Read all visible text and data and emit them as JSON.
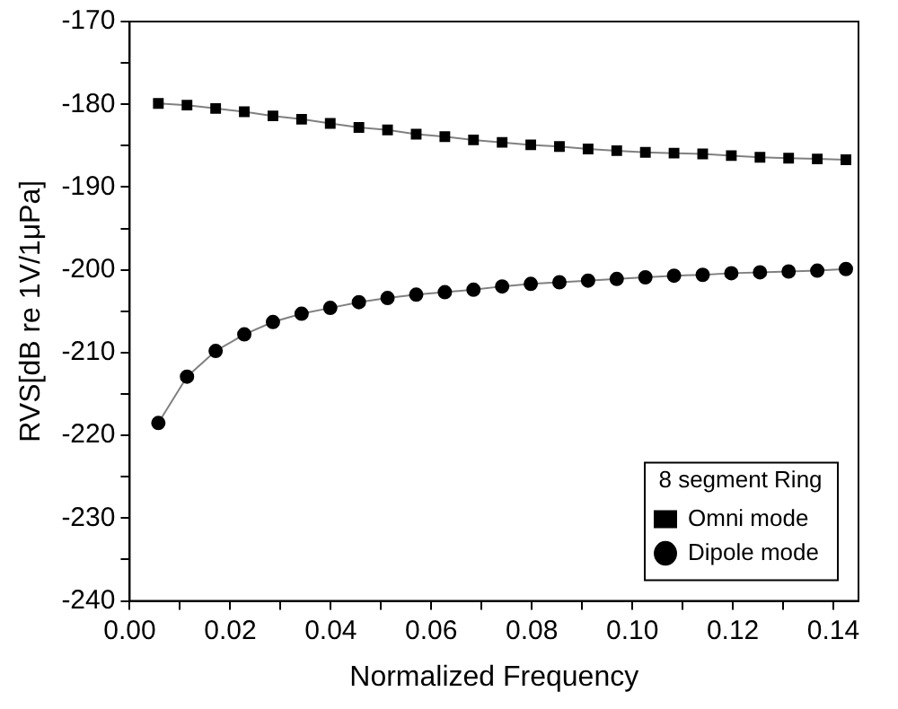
{
  "chart_data": {
    "type": "line",
    "xlabel": "Normalized Frequency",
    "ylabel": "RVS[dB re 1V/1μPa]",
    "legend_title": "8 segment Ring",
    "legend": "bottom right",
    "grid": false,
    "x": [
      0.0057,
      0.0114,
      0.0171,
      0.0228,
      0.0285,
      0.0342,
      0.0399,
      0.0456,
      0.0513,
      0.057,
      0.0627,
      0.0684,
      0.0741,
      0.0798,
      0.0855,
      0.0912,
      0.0969,
      0.1026,
      0.1083,
      0.114,
      0.1197,
      0.1254,
      0.1311,
      0.1368,
      0.1425
    ],
    "xlim": [
      0,
      0.145
    ],
    "xticks": [
      {
        "value": 0,
        "label": "0.00"
      },
      {
        "value": 0.01,
        "label": null
      },
      {
        "value": 0.02,
        "label": "0.02"
      },
      {
        "value": 0.03,
        "label": null
      },
      {
        "value": 0.04,
        "label": "0.04"
      },
      {
        "value": 0.05,
        "label": null
      },
      {
        "value": 0.06,
        "label": "0.06"
      },
      {
        "value": 0.07,
        "label": null
      },
      {
        "value": 0.08,
        "label": "0.08"
      },
      {
        "value": 0.09,
        "label": null
      },
      {
        "value": 0.1,
        "label": "0.10"
      },
      {
        "value": 0.11,
        "label": null
      },
      {
        "value": 0.12,
        "label": "0.12"
      },
      {
        "value": 0.13,
        "label": null
      },
      {
        "value": 0.14,
        "label": "0.14"
      }
    ],
    "ylim": [
      -240,
      -170
    ],
    "yticks": [
      -240,
      {
        "value": -235,
        "label": null
      },
      -230,
      {
        "value": -225,
        "label": null
      },
      -220,
      {
        "value": -215,
        "label": null
      },
      -210,
      {
        "value": -205,
        "label": null
      },
      -200,
      {
        "value": -195,
        "label": null
      },
      -190,
      {
        "value": -185,
        "label": null
      },
      -180,
      {
        "value": -175,
        "label": null
      },
      -170
    ],
    "series": [
      {
        "name": "Omni mode",
        "color": "#000000",
        "marker": "square",
        "values": [
          -179.9,
          -180.1,
          -180.5,
          -180.9,
          -181.4,
          -181.8,
          -182.3,
          -182.8,
          -183.1,
          -183.6,
          -183.9,
          -184.3,
          -184.6,
          -184.9,
          -185.1,
          -185.4,
          -185.6,
          -185.8,
          -185.9,
          -186.0,
          -186.2,
          -186.4,
          -186.5,
          -186.6,
          -186.7
        ]
      },
      {
        "name": "Dipole mode",
        "color": "#000000",
        "marker": "circle",
        "values": [
          -218.5,
          -212.9,
          -209.8,
          -207.8,
          -206.3,
          -205.3,
          -204.6,
          -203.9,
          -203.4,
          -203.0,
          -202.7,
          -202.4,
          -202.0,
          -201.7,
          -201.5,
          -201.3,
          -201.1,
          -200.9,
          -200.7,
          -200.6,
          -200.4,
          -200.3,
          -200.2,
          -200.1,
          -199.9
        ]
      }
    ]
  }
}
